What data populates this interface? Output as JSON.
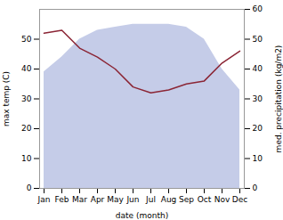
{
  "chart_data": {
    "type": "area",
    "categories": [
      "Jan",
      "Feb",
      "Mar",
      "Apr",
      "May",
      "Jun",
      "Jul",
      "Aug",
      "Sep",
      "Oct",
      "Nov",
      "Dec"
    ],
    "series": [
      {
        "type": "area",
        "color": "#c5cce8",
        "values": [
          39,
          44,
          50,
          53,
          54,
          55,
          55,
          55,
          54,
          50,
          40,
          33
        ]
      },
      {
        "type": "line",
        "color": "#8b2535",
        "axis": "y2",
        "values": [
          52,
          53,
          47,
          44,
          40,
          34,
          32,
          33,
          35,
          36,
          42,
          46
        ]
      }
    ],
    "xlabel": "date (month)",
    "ylabel": "max temp (C)",
    "y2label": "med. precipitation (kg/m2)",
    "ylim": [
      0,
      60
    ],
    "yticks": [
      0,
      10,
      20,
      30,
      40,
      50
    ],
    "y2lim": [
      0,
      60
    ],
    "y2ticks": [
      0,
      10,
      20,
      30,
      40,
      50,
      60
    ]
  }
}
